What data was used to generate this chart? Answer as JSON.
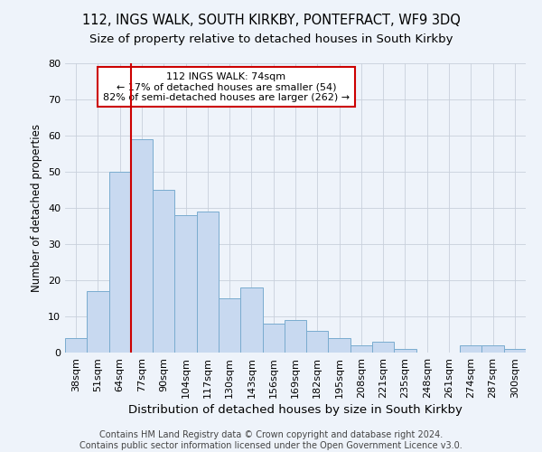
{
  "title1": "112, INGS WALK, SOUTH KIRKBY, PONTEFRACT, WF9 3DQ",
  "title2": "Size of property relative to detached houses in South Kirkby",
  "xlabel": "Distribution of detached houses by size in South Kirkby",
  "ylabel": "Number of detached properties",
  "categories": [
    "38sqm",
    "51sqm",
    "64sqm",
    "77sqm",
    "90sqm",
    "104sqm",
    "117sqm",
    "130sqm",
    "143sqm",
    "156sqm",
    "169sqm",
    "182sqm",
    "195sqm",
    "208sqm",
    "221sqm",
    "235sqm",
    "248sqm",
    "261sqm",
    "274sqm",
    "287sqm",
    "300sqm"
  ],
  "values": [
    4,
    17,
    50,
    59,
    45,
    38,
    39,
    15,
    18,
    8,
    9,
    6,
    4,
    2,
    3,
    1,
    0,
    0,
    2,
    2,
    1
  ],
  "bar_color": "#c8d9f0",
  "bar_edge_color": "#7aaccf",
  "grid_color": "#c8d0dc",
  "background_color": "#eef3fa",
  "property_label": "112 INGS WALK: 74sqm",
  "annotation_line1": "← 17% of detached houses are smaller (54)",
  "annotation_line2": "82% of semi-detached houses are larger (262) →",
  "annotation_box_facecolor": "#ffffff",
  "annotation_box_edgecolor": "#cc0000",
  "vline_color": "#cc0000",
  "ylim": [
    0,
    80
  ],
  "yticks": [
    0,
    10,
    20,
    30,
    40,
    50,
    60,
    70,
    80
  ],
  "vline_bar_index": 3,
  "title1_fontsize": 10.5,
  "title2_fontsize": 9.5,
  "xlabel_fontsize": 9.5,
  "ylabel_fontsize": 8.5,
  "tick_fontsize": 8,
  "annotation_fontsize": 8,
  "footer_fontsize": 7,
  "footer1": "Contains HM Land Registry data © Crown copyright and database right 2024.",
  "footer2": "Contains public sector information licensed under the Open Government Licence v3.0."
}
